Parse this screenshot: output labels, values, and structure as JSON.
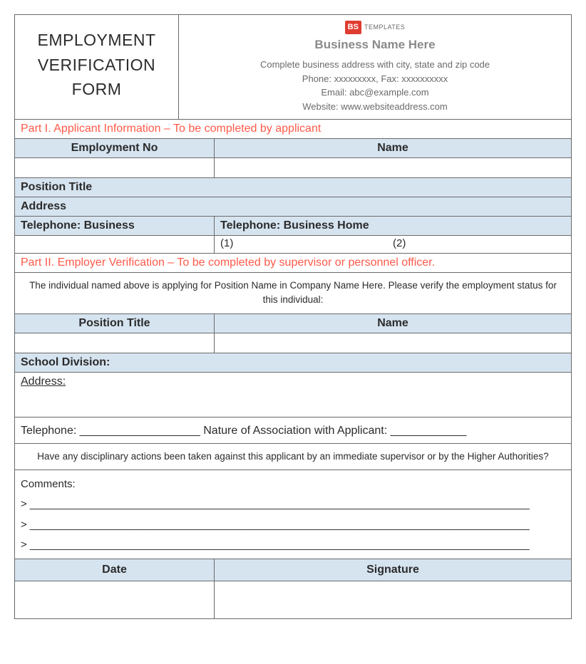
{
  "title": "EMPLOYMENT VERIFICATION FORM",
  "logo": {
    "badge": "BS",
    "text": "TEMPLATES"
  },
  "business": {
    "name": "Business Name Here",
    "address": "Complete business address with city, state and zip code",
    "phone": "Phone: xxxxxxxxx, Fax: xxxxxxxxxx",
    "email": "Email: abc@example.com",
    "website": "Website: www.websiteaddress.com"
  },
  "part1": {
    "heading": "Part I.  Applicant Information – To be completed by applicant",
    "employment_no": "Employment No",
    "name": "Name",
    "position_title": "Position Title",
    "address": "Address",
    "tel_business": "Telephone: Business",
    "tel_business_home": "Telephone: Business Home",
    "sub1": "(1)",
    "sub2": "(2)"
  },
  "part2": {
    "heading": "Part II.  Employer Verification – To be completed by supervisor or personnel officer.",
    "instruction": "The individual named above is applying for Position Name in Company Name Here.  Please verify the employment status for this individual:",
    "position_title": "Position Title",
    "name": "Name",
    "school_division": "School Division:",
    "address_label": "Address: ",
    "telephone_line": "Telephone: ___________________  Nature of Association with Applicant: ____________",
    "disciplinary": "Have any disciplinary actions been taken against this applicant by an immediate supervisor or by the Higher Authorities?",
    "comments_label": "Comments:",
    "comment_line": "> ____________________________________________________________________________________",
    "date": "Date",
    "signature": "Signature"
  },
  "colors": {
    "border": "#6a6a6a",
    "header_bg": "#d6e4f0",
    "section_text": "#ff5a4a",
    "muted_text": "#6a6a6a",
    "logo_bg": "#e03c31"
  }
}
